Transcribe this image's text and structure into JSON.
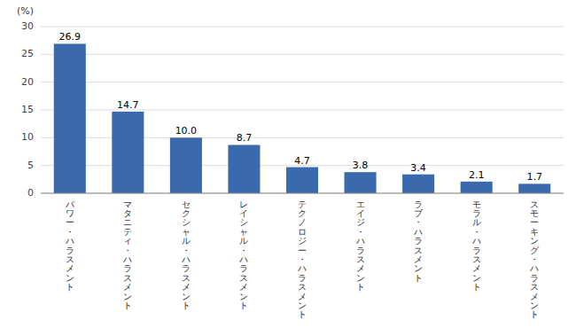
{
  "chart_data": {
    "type": "bar",
    "categories": [
      "パワー・ハラスメント",
      "マタニティ・ハラスメント",
      "セクシャル・ハラスメント",
      "レイシャル・ハラスメント",
      "テクノロジー・ハラスメント",
      "エイジ・ハラスメント",
      "ラブ・ハラスメント",
      "モラル・ハラスメント",
      "スモーキング・ハラスメント"
    ],
    "values": [
      26.9,
      14.7,
      10.0,
      8.7,
      4.7,
      3.8,
      3.4,
      2.1,
      1.7
    ],
    "value_labels": [
      "26.9",
      "14.7",
      "10.0",
      "8.7",
      "4.7",
      "3.8",
      "3.4",
      "2.1",
      "1.7"
    ],
    "color": "#3a6aad",
    "y_label": "(%)",
    "ylim": [
      0,
      30
    ],
    "yticks": [
      0,
      5,
      10,
      15,
      20,
      25,
      30
    ],
    "grid": true,
    "data_labels": true
  }
}
